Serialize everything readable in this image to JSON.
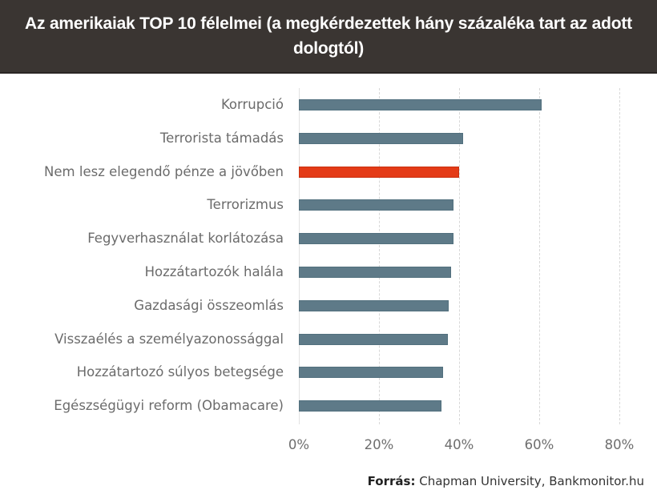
{
  "header": {
    "title": "Az amerikaiak TOP 10 félelmei (a megkérdezettek hány százaléka tart az adott dologtól)"
  },
  "source": {
    "label": "Forrás:",
    "text": "Chapman University, Bankmonitor.hu"
  },
  "colors": {
    "header_bg": "#3a3532",
    "bar_default": "#5e7a88",
    "bar_highlight": "#e43b17",
    "label_text": "#6b6b6b"
  },
  "chart_data": {
    "type": "bar",
    "orientation": "horizontal",
    "title": "Az amerikaiak TOP 10 félelmei (a megkérdezettek hány százaléka tart az adott dologtól)",
    "xlabel": "",
    "ylabel": "",
    "xlim": [
      0,
      80
    ],
    "x_ticks": [
      "0%",
      "20%",
      "40%",
      "60%",
      "80%"
    ],
    "grid": true,
    "legend": "none",
    "categories": [
      "Korrupció",
      "Terrorista támadás",
      "Nem lesz elegendő pénze a jövőben",
      "Terrorizmus",
      "Fegyverhasználat korlátozása",
      "Hozzátartozók halála",
      "Gazdasági összeomlás",
      "Visszaélés a személyazonossággal",
      "Hozzátartozó súlyos betegsége",
      "Egészségügyi reform (Obamacare)"
    ],
    "values": [
      60.6,
      41.0,
      39.9,
      38.6,
      38.5,
      38.0,
      37.4,
      37.2,
      36.0,
      35.5
    ],
    "highlighted": [
      false,
      false,
      true,
      false,
      false,
      false,
      false,
      false,
      false,
      false
    ],
    "source": "Forrás: Chapman University, Bankmonitor.hu"
  }
}
